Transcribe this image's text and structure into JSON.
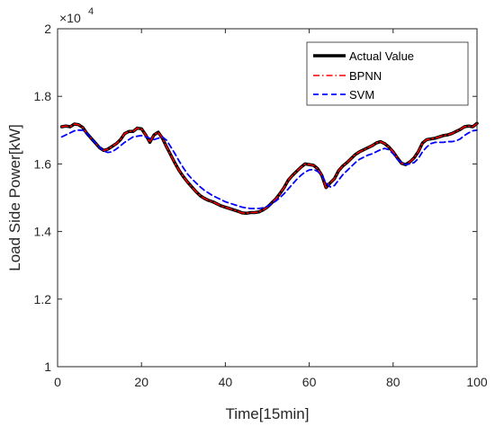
{
  "chart_data": {
    "type": "line",
    "title": "",
    "xlabel": "Time[15min]",
    "ylabel": "Load Side Power[kW]",
    "xlim": [
      0,
      100
    ],
    "ylim": [
      1.0,
      2.0
    ],
    "y_scale_note": "×10⁴",
    "y_exponent_base": "×10",
    "y_exponent_power": "4",
    "x_ticks": [
      0,
      20,
      40,
      60,
      80,
      100
    ],
    "y_ticks": [
      1,
      1.2,
      1.4,
      1.6,
      1.8,
      2
    ],
    "x_tick_labels": [
      "0",
      "20",
      "40",
      "60",
      "80",
      "100"
    ],
    "y_tick_labels": [
      "1",
      "1.2",
      "1.4",
      "1.6",
      "1.8",
      "2"
    ],
    "grid": false,
    "legend_position": "top-right",
    "x": [
      1,
      2,
      3,
      4,
      5,
      6,
      7,
      8,
      9,
      10,
      11,
      12,
      13,
      14,
      15,
      16,
      17,
      18,
      19,
      20,
      21,
      22,
      23,
      24,
      25,
      26,
      27,
      28,
      29,
      30,
      31,
      32,
      33,
      34,
      35,
      36,
      37,
      38,
      39,
      40,
      41,
      42,
      43,
      44,
      45,
      46,
      47,
      48,
      49,
      50,
      51,
      52,
      53,
      54,
      55,
      56,
      57,
      58,
      59,
      60,
      61,
      62,
      63,
      64,
      65,
      66,
      67,
      68,
      69,
      70,
      71,
      72,
      73,
      74,
      75,
      76,
      77,
      78,
      79,
      80,
      81,
      82,
      83,
      84,
      85,
      86,
      87,
      88,
      89,
      90,
      91,
      92,
      93,
      94,
      95,
      96,
      97,
      98,
      99,
      100
    ],
    "series": [
      {
        "name": "Actual Value",
        "color": "#000000",
        "style": "solid",
        "values": [
          1.71,
          1.712,
          1.71,
          1.718,
          1.716,
          1.708,
          1.69,
          1.676,
          1.662,
          1.648,
          1.64,
          1.644,
          1.652,
          1.66,
          1.672,
          1.69,
          1.696,
          1.696,
          1.706,
          1.704,
          1.686,
          1.664,
          1.686,
          1.694,
          1.676,
          1.65,
          1.626,
          1.602,
          1.58,
          1.562,
          1.546,
          1.532,
          1.518,
          1.506,
          1.498,
          1.492,
          1.488,
          1.482,
          1.476,
          1.472,
          1.468,
          1.464,
          1.46,
          1.455,
          1.454,
          1.456,
          1.456,
          1.458,
          1.464,
          1.472,
          1.484,
          1.496,
          1.512,
          1.53,
          1.552,
          1.566,
          1.578,
          1.59,
          1.6,
          1.598,
          1.596,
          1.586,
          1.566,
          1.53,
          1.544,
          1.556,
          1.58,
          1.594,
          1.604,
          1.616,
          1.628,
          1.636,
          1.642,
          1.648,
          1.654,
          1.662,
          1.666,
          1.66,
          1.65,
          1.636,
          1.618,
          1.602,
          1.598,
          1.606,
          1.618,
          1.636,
          1.662,
          1.672,
          1.674,
          1.676,
          1.68,
          1.684,
          1.686,
          1.69,
          1.696,
          1.702,
          1.71,
          1.712,
          1.71,
          1.72
        ]
      },
      {
        "name": "BPNN",
        "color": "#ff0000",
        "style": "dashdot",
        "values": [
          1.71,
          1.712,
          1.71,
          1.718,
          1.716,
          1.708,
          1.69,
          1.676,
          1.662,
          1.648,
          1.64,
          1.644,
          1.652,
          1.66,
          1.672,
          1.69,
          1.696,
          1.696,
          1.706,
          1.704,
          1.686,
          1.664,
          1.686,
          1.694,
          1.676,
          1.65,
          1.626,
          1.602,
          1.58,
          1.562,
          1.546,
          1.532,
          1.518,
          1.506,
          1.498,
          1.492,
          1.488,
          1.482,
          1.476,
          1.472,
          1.468,
          1.464,
          1.46,
          1.455,
          1.454,
          1.456,
          1.456,
          1.458,
          1.464,
          1.472,
          1.484,
          1.496,
          1.512,
          1.53,
          1.552,
          1.566,
          1.578,
          1.59,
          1.6,
          1.598,
          1.596,
          1.586,
          1.566,
          1.53,
          1.544,
          1.556,
          1.58,
          1.594,
          1.604,
          1.616,
          1.628,
          1.636,
          1.642,
          1.648,
          1.654,
          1.662,
          1.666,
          1.66,
          1.65,
          1.636,
          1.618,
          1.602,
          1.598,
          1.606,
          1.618,
          1.636,
          1.662,
          1.672,
          1.674,
          1.676,
          1.68,
          1.684,
          1.686,
          1.69,
          1.696,
          1.702,
          1.71,
          1.712,
          1.71,
          1.72
        ]
      },
      {
        "name": "SVM",
        "color": "#0000ff",
        "style": "dashed",
        "values": [
          1.68,
          1.686,
          1.692,
          1.698,
          1.7,
          1.7,
          1.69,
          1.676,
          1.662,
          1.65,
          1.638,
          1.634,
          1.636,
          1.644,
          1.654,
          1.664,
          1.672,
          1.68,
          1.682,
          1.684,
          1.68,
          1.676,
          1.672,
          1.676,
          1.68,
          1.67,
          1.65,
          1.63,
          1.608,
          1.588,
          1.57,
          1.556,
          1.544,
          1.532,
          1.522,
          1.514,
          1.506,
          1.5,
          1.494,
          1.488,
          1.484,
          1.48,
          1.476,
          1.472,
          1.47,
          1.468,
          1.468,
          1.468,
          1.47,
          1.474,
          1.482,
          1.49,
          1.5,
          1.512,
          1.526,
          1.54,
          1.554,
          1.566,
          1.576,
          1.582,
          1.584,
          1.578,
          1.566,
          1.544,
          1.532,
          1.536,
          1.552,
          1.568,
          1.58,
          1.592,
          1.604,
          1.614,
          1.62,
          1.626,
          1.63,
          1.636,
          1.642,
          1.646,
          1.642,
          1.63,
          1.614,
          1.604,
          1.598,
          1.6,
          1.604,
          1.616,
          1.636,
          1.65,
          1.66,
          1.664,
          1.664,
          1.664,
          1.666,
          1.666,
          1.668,
          1.674,
          1.684,
          1.692,
          1.698,
          1.7
        ]
      }
    ]
  }
}
